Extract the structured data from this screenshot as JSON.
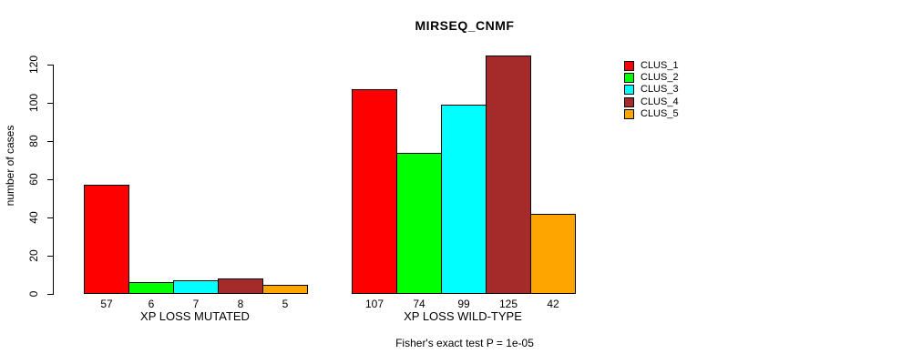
{
  "chart_data": {
    "type": "bar",
    "title": "MIRSEQ_CNMF",
    "xlabel": "",
    "ylabel": "number of cases",
    "ylim": [
      0,
      120
    ],
    "yticks": [
      0,
      20,
      40,
      60,
      80,
      100,
      120
    ],
    "grid": false,
    "legend_position": "right-outside",
    "series": [
      "CLUS_1",
      "CLUS_2",
      "CLUS_3",
      "CLUS_4",
      "CLUS_5"
    ],
    "colors": [
      "#ff0000",
      "#00ff00",
      "#00ffff",
      "#a52a2a",
      "#ffa500"
    ],
    "groups": [
      {
        "label": "XP LOSS MUTATED",
        "values": [
          57,
          6,
          7,
          8,
          5
        ]
      },
      {
        "label": "XP LOSS WILD-TYPE",
        "values": [
          107,
          74,
          99,
          125,
          42
        ]
      }
    ],
    "bar_value_labels": [
      [
        "57",
        "6",
        "7",
        "8",
        "5"
      ],
      [
        "107",
        "74",
        "99",
        "125",
        "42"
      ]
    ],
    "annotation": "Fisher's exact test P = 1e-05"
  }
}
